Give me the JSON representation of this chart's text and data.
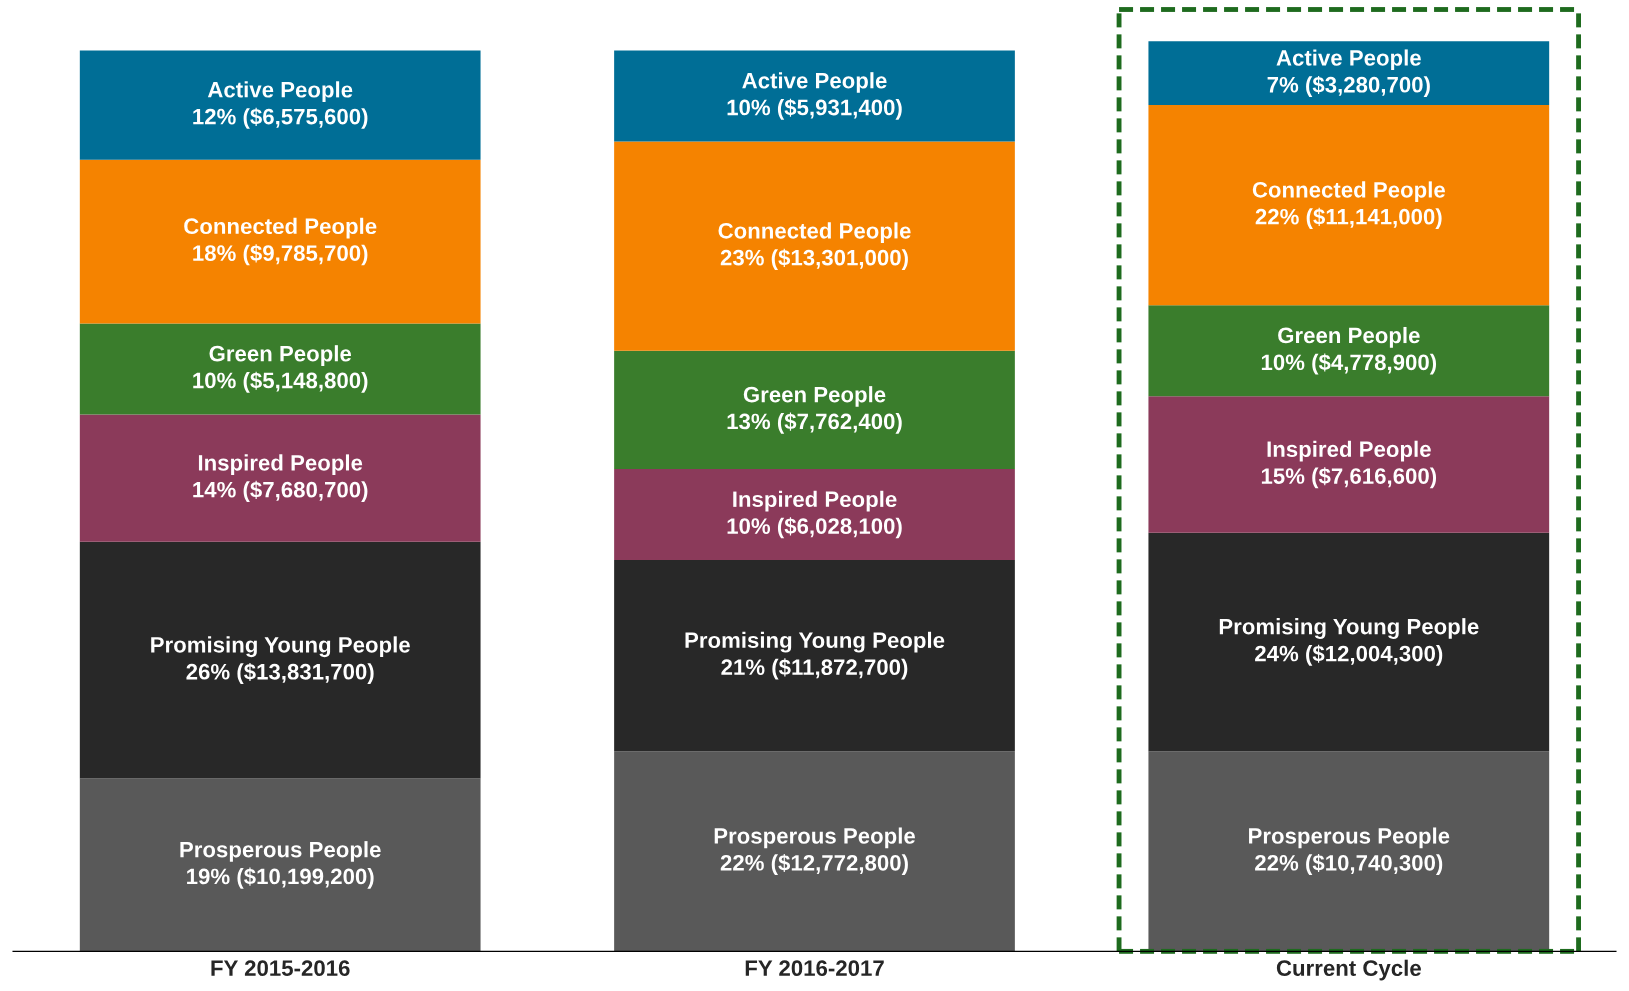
{
  "chart_data": {
    "type": "bar",
    "stacked": true,
    "categories": [
      "FY 2015-2016",
      "FY 2016-2017",
      "Current Cycle"
    ],
    "series": [
      {
        "name": "Prosperous People",
        "color": "#595959",
        "values": [
          19,
          22,
          22
        ],
        "value_labels": [
          "19% ($10,199,200)",
          "22% ($12,772,800)",
          "22% ($10,740,300)"
        ]
      },
      {
        "name": "Promising Young People",
        "color": "#282828",
        "values": [
          26,
          21,
          24
        ],
        "value_labels": [
          "26% ($13,831,700)",
          "21% ($11,872,700)",
          "24% ($12,004,300)"
        ]
      },
      {
        "name": "Inspired People",
        "color": "#8b3a5a",
        "values": [
          14,
          10,
          15
        ],
        "value_labels": [
          "14% ($7,680,700)",
          "10% ($6,028,100)",
          "15% ($7,616,600)"
        ]
      },
      {
        "name": "Green People",
        "color": "#3a7d2c",
        "values": [
          10,
          13,
          10
        ],
        "value_labels": [
          "10% ($5,148,800)",
          "13% ($7,762,400)",
          "10% ($4,778,900)"
        ]
      },
      {
        "name": "Connected People",
        "color": "#f58300",
        "values": [
          18,
          23,
          22
        ],
        "value_labels": [
          "18% ($9,785,700)",
          "23% ($13,301,000)",
          "22% ($11,141,000)"
        ]
      },
      {
        "name": "Active People",
        "color": "#006e96",
        "values": [
          12,
          10,
          7
        ],
        "value_labels": [
          "12% ($6,575,600)",
          "10% ($5,931,400)",
          "7% ($3,280,700)"
        ]
      }
    ],
    "grid": false,
    "legend": false
  }
}
